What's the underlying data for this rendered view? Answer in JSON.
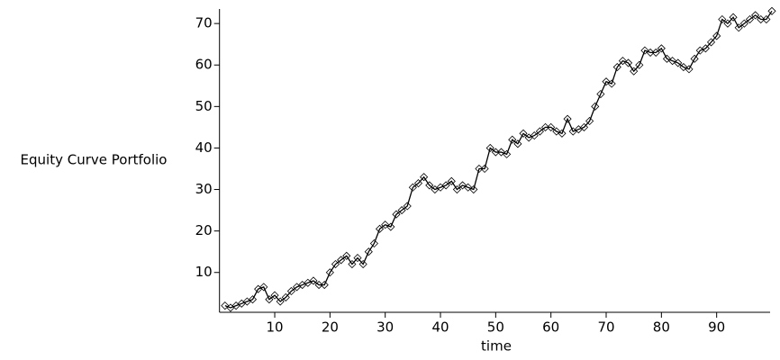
{
  "chart_data": {
    "type": "line",
    "ylabel": "Equity Curve Portfolio",
    "xlabel": "time",
    "x": [
      1,
      2,
      3,
      4,
      5,
      6,
      7,
      8,
      9,
      10,
      11,
      12,
      13,
      14,
      15,
      16,
      17,
      18,
      19,
      20,
      21,
      22,
      23,
      24,
      25,
      26,
      27,
      28,
      29,
      30,
      31,
      32,
      33,
      34,
      35,
      36,
      37,
      38,
      39,
      40,
      41,
      42,
      43,
      44,
      45,
      46,
      47,
      48,
      49,
      50,
      51,
      52,
      53,
      54,
      55,
      56,
      57,
      58,
      59,
      60,
      61,
      62,
      63,
      64,
      65,
      66,
      67,
      68,
      69,
      70,
      71,
      72,
      73,
      74,
      75,
      76,
      77,
      78,
      79,
      80,
      81,
      82,
      83,
      84,
      85,
      86,
      87,
      88,
      89,
      90,
      91,
      92,
      93,
      94,
      95,
      96,
      97,
      98,
      99,
      100
    ],
    "series": [
      {
        "color": "#000000",
        "marker": "diamond",
        "values": [
          2,
          1.5,
          2,
          2.5,
          3,
          3.5,
          6,
          6.5,
          3.5,
          4.5,
          3,
          4,
          5.5,
          6.5,
          7,
          7.5,
          8,
          7,
          7,
          10,
          12,
          13,
          14,
          12,
          13.5,
          12,
          15,
          17,
          20.5,
          21.5,
          21,
          24,
          25,
          26,
          30.5,
          31.5,
          33,
          31,
          30,
          30.5,
          31,
          32,
          30,
          31,
          30.5,
          30,
          35,
          35,
          40,
          39,
          39,
          38.5,
          42,
          41,
          43.5,
          42.5,
          43,
          44,
          45,
          45,
          44,
          43.5,
          47,
          44,
          44.5,
          45,
          46.5,
          50,
          53,
          56,
          55.5,
          59.5,
          61,
          60.5,
          58.5,
          60,
          63.5,
          63,
          63,
          64,
          61.5,
          61,
          60.5,
          59.5,
          59,
          61.5,
          63.5,
          64,
          65.5,
          67,
          71,
          70,
          71.5,
          69,
          70,
          71,
          72,
          71,
          71,
          73
        ]
      }
    ],
    "xlim": [
      0,
      100
    ],
    "ylim": [
      0.4,
      73.5
    ],
    "xticks": [
      10,
      20,
      30,
      40,
      50,
      60,
      70,
      80,
      90
    ],
    "yticks": [
      10,
      20,
      30,
      40,
      50,
      60,
      70
    ]
  }
}
